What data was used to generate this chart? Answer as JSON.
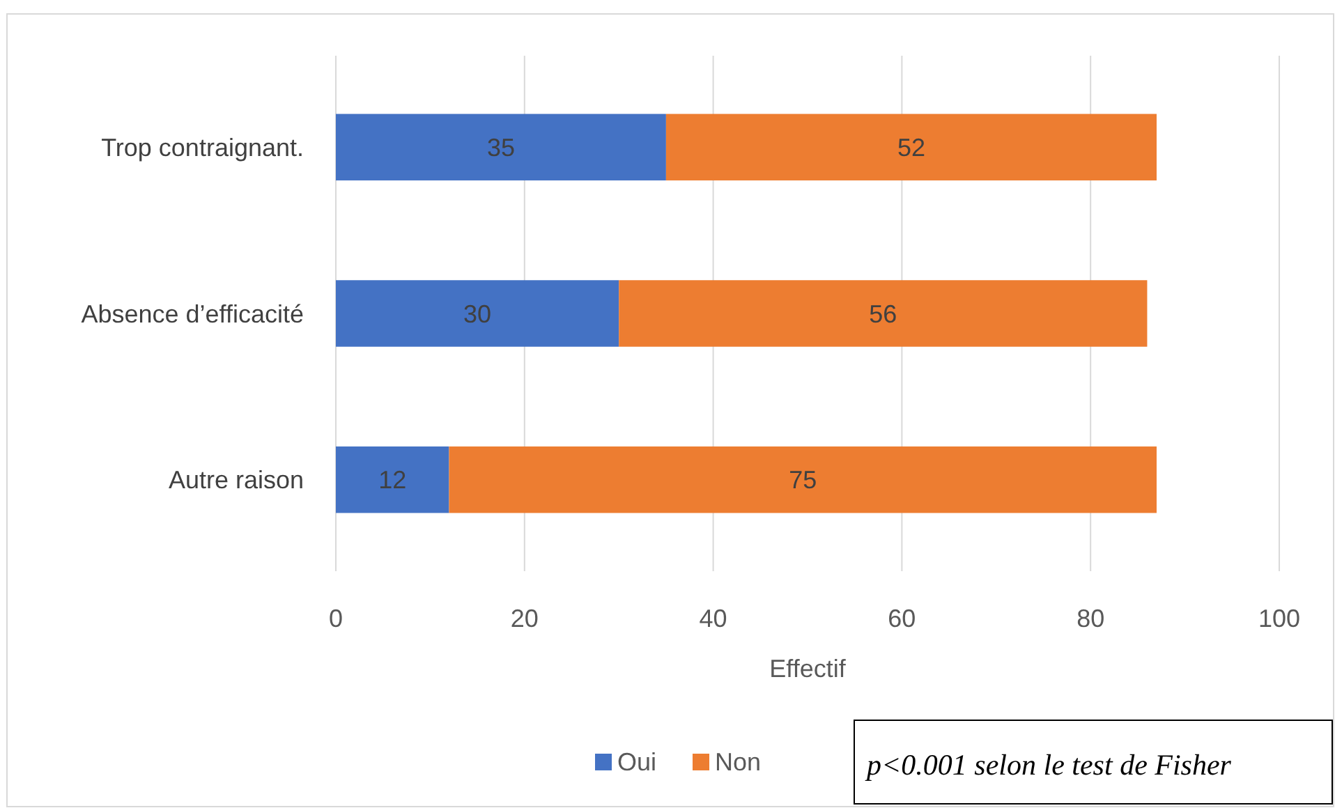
{
  "chart_data": {
    "type": "bar",
    "orientation": "horizontal",
    "stacked": true,
    "categories": [
      "Trop contraignant.",
      "Absence d’efficacité",
      "Autre raison"
    ],
    "series": [
      {
        "name": "Oui",
        "color": "#4472c4",
        "values": [
          35,
          30,
          12
        ]
      },
      {
        "name": "Non",
        "color": "#ed7d31",
        "values": [
          52,
          56,
          75
        ]
      }
    ],
    "xlabel": "Effectif",
    "xlim": [
      0,
      100
    ],
    "xticks": [
      0,
      20,
      40,
      60,
      80,
      100
    ],
    "grid": "x",
    "data_labels": true,
    "legend": "bottom",
    "annotations": [
      "p<0.001 selon le test de Fisher"
    ]
  }
}
